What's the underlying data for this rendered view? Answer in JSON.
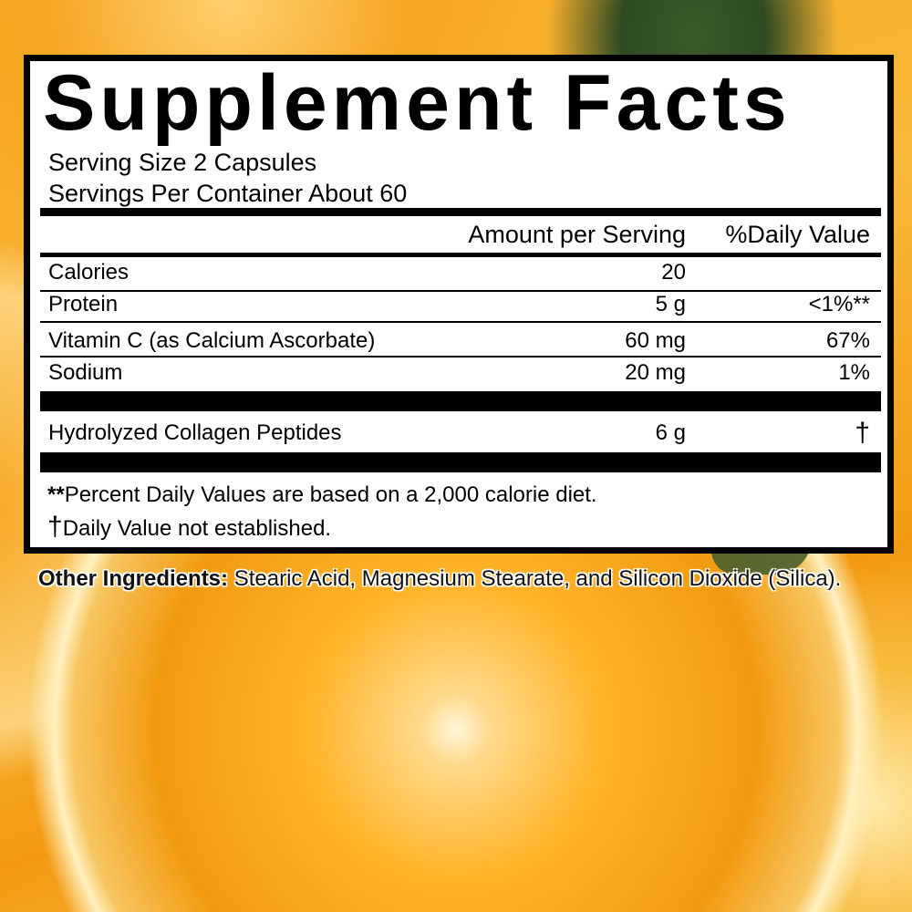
{
  "label": {
    "title": "Supplement Facts",
    "serving_size": "Serving Size 2 Capsules",
    "servings_per_container": "Servings Per Container About 60",
    "header": {
      "amount": "Amount per Serving",
      "daily_value": "%Daily Value"
    },
    "rows": [
      {
        "name": "Calories",
        "amount": "20",
        "dv": ""
      },
      {
        "name": "Protein",
        "amount": "5 g",
        "dv": "<1%**"
      },
      {
        "name": "Vitamin C (as Calcium Ascorbate)",
        "amount": "60 mg",
        "dv": "67%"
      },
      {
        "name": "Sodium",
        "amount": "20 mg",
        "dv": "1%"
      }
    ],
    "other_rows": [
      {
        "name": "Hydrolyzed Collagen Peptides",
        "amount": "6 g",
        "dv": "†"
      }
    ],
    "footnotes": {
      "stars": "**",
      "percent_text": "Percent Daily Values are based on a 2,000 calorie diet.",
      "dagger": "†",
      "dagger_text": "Daily Value not established."
    }
  },
  "other_ingredients": {
    "label": "Other Ingredients:",
    "text": "Stearic Acid, Magnesium Stearate, and Silicon Dioxide (Silica)."
  }
}
